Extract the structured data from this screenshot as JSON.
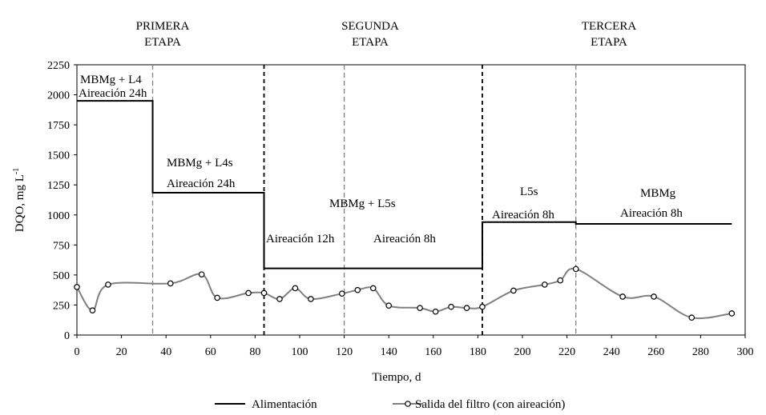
{
  "chart_data": {
    "type": "line",
    "title": "",
    "xlabel": "Tiempo, d",
    "ylabel": "DQO, mg L",
    "ylabel_sup": "-1",
    "xlim": [
      0,
      300
    ],
    "ylim": [
      0,
      2250
    ],
    "xticks": [
      0,
      20,
      40,
      60,
      80,
      100,
      120,
      140,
      160,
      180,
      200,
      220,
      240,
      260,
      280,
      300
    ],
    "yticks": [
      0,
      250,
      500,
      750,
      1000,
      1250,
      1500,
      1750,
      2000,
      2250
    ],
    "grid": false,
    "legend_position": "bottom",
    "series": [
      {
        "name": "Alimentación",
        "style": "step",
        "color": "#000000",
        "points": [
          [
            0,
            1950
          ],
          [
            34,
            1950
          ],
          [
            34,
            1185
          ],
          [
            84,
            1185
          ],
          [
            84,
            555
          ],
          [
            182,
            555
          ],
          [
            182,
            940
          ],
          [
            224,
            940
          ],
          [
            224,
            925
          ],
          [
            294,
            925
          ]
        ]
      },
      {
        "name": "Salida del filtro (con aireación)",
        "style": "smooth-markers",
        "color": "#808080",
        "points": [
          [
            0,
            400
          ],
          [
            7,
            205
          ],
          [
            14,
            420
          ],
          [
            42,
            430
          ],
          [
            56,
            505
          ],
          [
            63,
            310
          ],
          [
            77,
            350
          ],
          [
            84,
            350
          ],
          [
            91,
            300
          ],
          [
            98,
            390
          ],
          [
            105,
            300
          ],
          [
            119,
            345
          ],
          [
            126,
            375
          ],
          [
            133,
            390
          ],
          [
            140,
            245
          ],
          [
            154,
            225
          ],
          [
            161,
            195
          ],
          [
            168,
            235
          ],
          [
            175,
            225
          ],
          [
            182,
            235
          ],
          [
            196,
            370
          ],
          [
            210,
            420
          ],
          [
            217,
            455
          ],
          [
            224,
            550
          ],
          [
            245,
            320
          ],
          [
            259,
            320
          ],
          [
            276,
            145
          ],
          [
            294,
            180
          ]
        ]
      }
    ],
    "stage_dividers": [
      {
        "x": 84,
        "style": "dashed",
        "color": "#000000"
      },
      {
        "x": 182,
        "style": "dashed",
        "color": "#000000"
      },
      {
        "x": 34,
        "style": "dashed",
        "color": "#808080"
      },
      {
        "x": 120,
        "style": "dashed",
        "color": "#808080"
      },
      {
        "x": 224,
        "style": "dashed",
        "color": "#808080"
      }
    ],
    "stages": [
      {
        "line1": "PRIMERA",
        "line2": "ETAPA"
      },
      {
        "line1": "SEGUNDA",
        "line2": "ETAPA"
      },
      {
        "line1": "TERCERA",
        "line2": "ETAPA"
      }
    ],
    "annotations": [
      "MBMg + L4",
      "Aireación 24h",
      "MBMg + L4s",
      "Aireación 24h",
      "MBMg + L5s",
      "Aireación 12h",
      "Aireación 8h",
      "L5s",
      "Aireación 8h",
      "MBMg",
      "Aireación 8h"
    ]
  }
}
